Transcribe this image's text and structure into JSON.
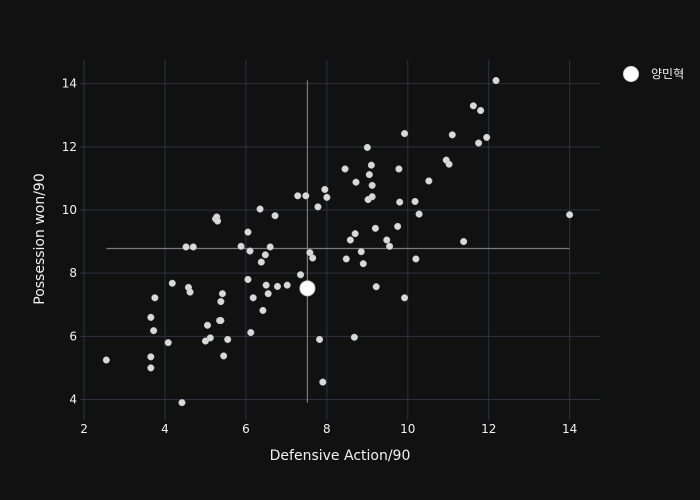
{
  "chart_data": {
    "type": "scatter",
    "xlabel": "Defensive Action/90",
    "ylabel": "Possession won/90",
    "xlim": [
      1.9,
      14.75
    ],
    "ylim": [
      3.35,
      14.75
    ],
    "x_ticks": [
      2,
      4,
      6,
      8,
      10,
      12,
      14
    ],
    "y_ticks": [
      4,
      6,
      8,
      10,
      12,
      14
    ],
    "grid": true,
    "legend_position": "top-right",
    "colors": {
      "background": "#111111",
      "grid": "#2a3340",
      "points": "#d9d9d9",
      "highlight": "#ffffff",
      "ref_lines": "#7a7a7a"
    },
    "reference_lines": {
      "vertical": {
        "x": 7.52,
        "y_range": [
          3.9,
          14.1
        ]
      },
      "horizontal": {
        "y": 8.78,
        "x_range": [
          2.55,
          14.0
        ]
      }
    },
    "series": [
      {
        "values": [
          [
            2.55,
            5.25
          ],
          [
            3.65,
            6.6
          ],
          [
            3.65,
            5.35
          ],
          [
            3.65,
            5.0
          ],
          [
            3.72,
            6.18
          ],
          [
            3.75,
            7.22
          ],
          [
            4.08,
            5.8
          ],
          [
            4.18,
            7.68
          ],
          [
            4.42,
            3.9
          ],
          [
            4.52,
            8.83
          ],
          [
            4.58,
            7.55
          ],
          [
            4.62,
            7.4
          ],
          [
            4.7,
            8.83
          ],
          [
            5.0,
            5.85
          ],
          [
            5.05,
            6.35
          ],
          [
            5.12,
            5.95
          ],
          [
            5.25,
            9.72
          ],
          [
            5.28,
            9.78
          ],
          [
            5.3,
            9.65
          ],
          [
            5.35,
            6.5
          ],
          [
            5.38,
            7.1
          ],
          [
            5.38,
            6.5
          ],
          [
            5.42,
            7.35
          ],
          [
            5.45,
            5.38
          ],
          [
            5.55,
            5.9
          ],
          [
            5.88,
            8.85
          ],
          [
            6.05,
            7.8
          ],
          [
            6.05,
            9.3
          ],
          [
            6.1,
            8.7
          ],
          [
            6.12,
            6.12
          ],
          [
            6.18,
            7.22
          ],
          [
            6.35,
            10.03
          ],
          [
            6.38,
            8.35
          ],
          [
            6.42,
            6.82
          ],
          [
            6.48,
            8.58
          ],
          [
            6.5,
            7.62
          ],
          [
            6.55,
            7.35
          ],
          [
            6.6,
            8.83
          ],
          [
            6.72,
            9.82
          ],
          [
            6.78,
            7.58
          ],
          [
            7.02,
            7.62
          ],
          [
            7.28,
            10.45
          ],
          [
            7.35,
            7.95
          ],
          [
            7.48,
            10.45
          ],
          [
            7.58,
            8.65
          ],
          [
            7.65,
            8.48
          ],
          [
            7.78,
            10.1
          ],
          [
            7.82,
            5.9
          ],
          [
            7.9,
            4.55
          ],
          [
            7.95,
            10.65
          ],
          [
            8.0,
            10.4
          ],
          [
            8.45,
            11.3
          ],
          [
            8.48,
            8.45
          ],
          [
            8.58,
            9.05
          ],
          [
            8.68,
            5.97
          ],
          [
            8.7,
            9.25
          ],
          [
            8.72,
            10.88
          ],
          [
            8.85,
            8.68
          ],
          [
            8.9,
            8.3
          ],
          [
            9.0,
            11.98
          ],
          [
            9.02,
            10.33
          ],
          [
            9.05,
            11.12
          ],
          [
            9.1,
            11.42
          ],
          [
            9.12,
            10.78
          ],
          [
            9.12,
            10.42
          ],
          [
            9.2,
            9.42
          ],
          [
            9.22,
            7.57
          ],
          [
            9.48,
            9.05
          ],
          [
            9.55,
            8.85
          ],
          [
            9.75,
            9.48
          ],
          [
            9.78,
            11.3
          ],
          [
            9.8,
            10.25
          ],
          [
            9.92,
            12.42
          ],
          [
            9.92,
            7.22
          ],
          [
            10.18,
            10.27
          ],
          [
            10.2,
            8.45
          ],
          [
            10.28,
            9.87
          ],
          [
            10.52,
            10.92
          ],
          [
            10.95,
            11.58
          ],
          [
            11.02,
            11.45
          ],
          [
            11.1,
            12.38
          ],
          [
            11.38,
            9.0
          ],
          [
            11.62,
            13.3
          ],
          [
            11.75,
            12.12
          ],
          [
            11.8,
            13.15
          ],
          [
            11.95,
            12.3
          ],
          [
            12.18,
            14.1
          ],
          [
            14.0,
            9.85
          ]
        ]
      },
      {
        "name": "양민혁",
        "values": [
          [
            7.52,
            7.52
          ]
        ]
      }
    ]
  }
}
